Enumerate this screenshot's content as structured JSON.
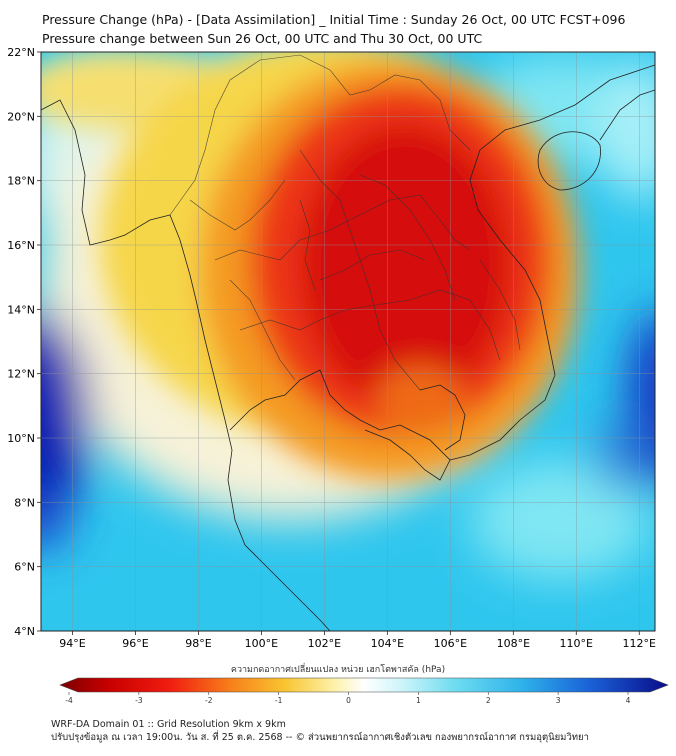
{
  "header": {
    "title_line1": "Pressure Change (hPa) - [Data Assimilation] _ Initial Time : Sunday 26 Oct, 00 UTC FCST+096",
    "title_line2": "Pressure change between Sun 26 Oct, 00 UTC and Thu 30 Oct, 00 UTC"
  },
  "map": {
    "lat_labels": [
      "22°N",
      "20°N",
      "18°N",
      "16°N",
      "14°N",
      "12°N",
      "10°N",
      "8°N",
      "6°N",
      "4°N"
    ],
    "lon_labels": [
      "94°E",
      "96°E",
      "98°E",
      "100°E",
      "102°E",
      "104°E",
      "106°E",
      "108°E",
      "110°E",
      "112°E"
    ],
    "colors": {
      "strong_positive": "#0a1fb8",
      "positive": "#2aa6e6",
      "weak_positive": "#6fdcf0",
      "neutral": "#ffffff",
      "weak_negative": "#f5d44a",
      "negative": "#f28a1a",
      "strong_negative": "#e01010"
    }
  },
  "colorbar": {
    "title": "ความกดอากาศเปลี่ยนแปลง หน่วย เฮกโตพาสคัล (hPa)",
    "ticks": [
      "-4",
      "-3",
      "-2",
      "-1",
      "0",
      "1",
      "2",
      "3",
      "4"
    ]
  },
  "footer": {
    "line1": "WRF-DA Domain 01 :: Grid Resolution 9km x 9km",
    "line2": "ปรับปรุงข้อมูล ณ เวลา 19:00น. วัน ส. ที่ 25 ต.ค. 2568 -- © ส่วนพยากรณ์อากาศเชิงตัวเลข กองพยากรณ์อากาศ กรมอุตุนิยมวิทยา"
  }
}
